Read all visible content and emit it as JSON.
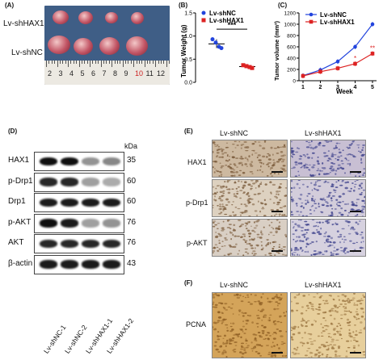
{
  "panelA": {
    "label": "(A)",
    "row1": "Lv-shHAX1",
    "row2": "Lv-shNC",
    "ruler_numbers": [
      "2",
      "3",
      "4",
      "5",
      "6",
      "7",
      "8",
      "9",
      "10",
      "11",
      "12"
    ]
  },
  "panelB": {
    "label": "(B)",
    "chart_data": {
      "type": "scatter",
      "ylabel": "Tumor Weight (g)",
      "yticks": [
        "0.0",
        "0.5",
        "1.0",
        "1.5"
      ],
      "ylim": [
        0,
        1.5
      ],
      "series": [
        {
          "name": "Lv-shNC",
          "color": "#2244dd",
          "values": [
            0.93,
            0.86,
            0.77,
            0.74
          ],
          "mean": 0.83
        },
        {
          "name": "Lv-shHAX1",
          "color": "#dd2222",
          "values": [
            0.37,
            0.35,
            0.33,
            0.31
          ],
          "mean": 0.34
        }
      ],
      "significance": "***"
    }
  },
  "panelC": {
    "label": "(C)",
    "chart_data": {
      "type": "line",
      "xlabel": "Week",
      "ylabel": "Tumor volume (mm³)",
      "x": [
        1,
        2,
        3,
        4,
        5
      ],
      "yticks": [
        "0",
        "200",
        "400",
        "600",
        "800",
        "1000",
        "1200"
      ],
      "ylim": [
        0,
        1200
      ],
      "series": [
        {
          "name": "Lv-shNC",
          "color": "#2244dd",
          "values": [
            90,
            190,
            340,
            600,
            1000
          ]
        },
        {
          "name": "Lv-shHAX1",
          "color": "#dd2222",
          "values": [
            85,
            160,
            220,
            300,
            480
          ]
        }
      ],
      "annotations": [
        {
          "x": 4,
          "text": "*"
        },
        {
          "x": 5,
          "text": "**"
        }
      ]
    }
  },
  "panelD": {
    "label": "(D)",
    "kda_header": "kDa",
    "rows": [
      {
        "protein": "HAX1",
        "kda": "35",
        "intensity": [
          1.0,
          1.0,
          0.45,
          0.5
        ]
      },
      {
        "protein": "p-Drp1",
        "kda": "60",
        "intensity": [
          0.9,
          0.9,
          0.4,
          0.35
        ]
      },
      {
        "protein": "Drp1",
        "kda": "60",
        "intensity": [
          0.95,
          0.95,
          0.95,
          0.95
        ]
      },
      {
        "protein": "p-AKT",
        "kda": "76",
        "intensity": [
          1.0,
          0.95,
          0.4,
          0.45
        ]
      },
      {
        "protein": "AKT",
        "kda": "76",
        "intensity": [
          0.9,
          0.9,
          0.9,
          0.9
        ]
      },
      {
        "protein": "β-actin",
        "kda": "43",
        "intensity": [
          0.95,
          0.95,
          0.95,
          0.95
        ]
      }
    ],
    "samples": [
      "Lv-shNC-1",
      "Lv-shNC-2",
      "Lv-shHAX1-1",
      "Lv-shHAX1-2"
    ]
  },
  "panelE": {
    "label": "(E)",
    "columns": [
      "Lv-shNC",
      "Lv-shHAX1"
    ],
    "rows": [
      "HAX1",
      "p-Drp1",
      "p-AKT"
    ]
  },
  "panelF": {
    "label": "(F)",
    "columns": [
      "Lv-shNC",
      "Lv-shHAX1"
    ],
    "rows": [
      "PCNA"
    ]
  }
}
